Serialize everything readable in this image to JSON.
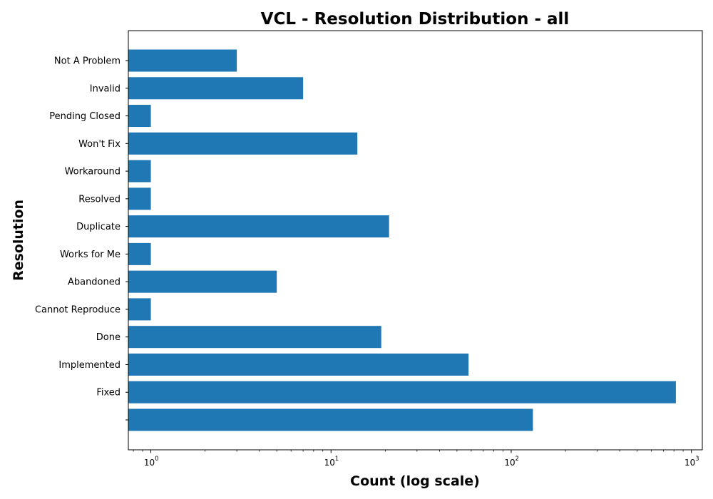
{
  "chart_data": {
    "type": "bar",
    "orientation": "horizontal",
    "title": "VCL - Resolution Distribution - all",
    "xlabel": "Count (log scale)",
    "ylabel": "Resolution",
    "x_scale": "log",
    "xlim": [
      0.75,
      1150
    ],
    "x_ticks": [
      {
        "value": 1,
        "base": "10",
        "exp": "0"
      },
      {
        "value": 10,
        "base": "10",
        "exp": "1"
      },
      {
        "value": 100,
        "base": "10",
        "exp": "2"
      },
      {
        "value": 1000,
        "base": "10",
        "exp": "3"
      }
    ],
    "categories": [
      "",
      "Fixed",
      "Implemented",
      "Done",
      "Cannot Reproduce",
      "Abandoned",
      "Works for Me",
      "Duplicate",
      "Resolved",
      "Workaround",
      "Won't Fix",
      "Pending Closed",
      "Invalid",
      "Not A Problem"
    ],
    "values": [
      132,
      820,
      58,
      19,
      1,
      5,
      1,
      21,
      1,
      1,
      14,
      1,
      7,
      3
    ],
    "bar_color": "#1f77b4",
    "grid": false,
    "legend": false
  }
}
